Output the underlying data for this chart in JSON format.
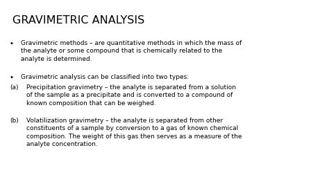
{
  "title": "GRAVIMETRIC ANALYSIS",
  "background_color": "#ffffff",
  "title_color": "#000000",
  "text_color": "#000000",
  "title_fontsize": 11.5,
  "body_fontsize": 6.5,
  "bullet1": "Gravimetric methods – are quantitative methods in which the mass of\nthe analyte or some compound that is chemically related to the\nanalyte is determined.",
  "bullet2": "Gravimetric analysis can be classified into two types:",
  "item_a": "Precipitation gravimetry – the analyte is separated from a solution\nof the sample as a precipitate and is converted to a compound of\nknown composition that can be weighed.",
  "item_b": "Volatilization gravimetry – the analyte is separated from other\nconstituents of a sample by conversion to a gas of known chemical\ncomposition. The weight of this gas then serves as a measure of the\nanalyte concentration."
}
